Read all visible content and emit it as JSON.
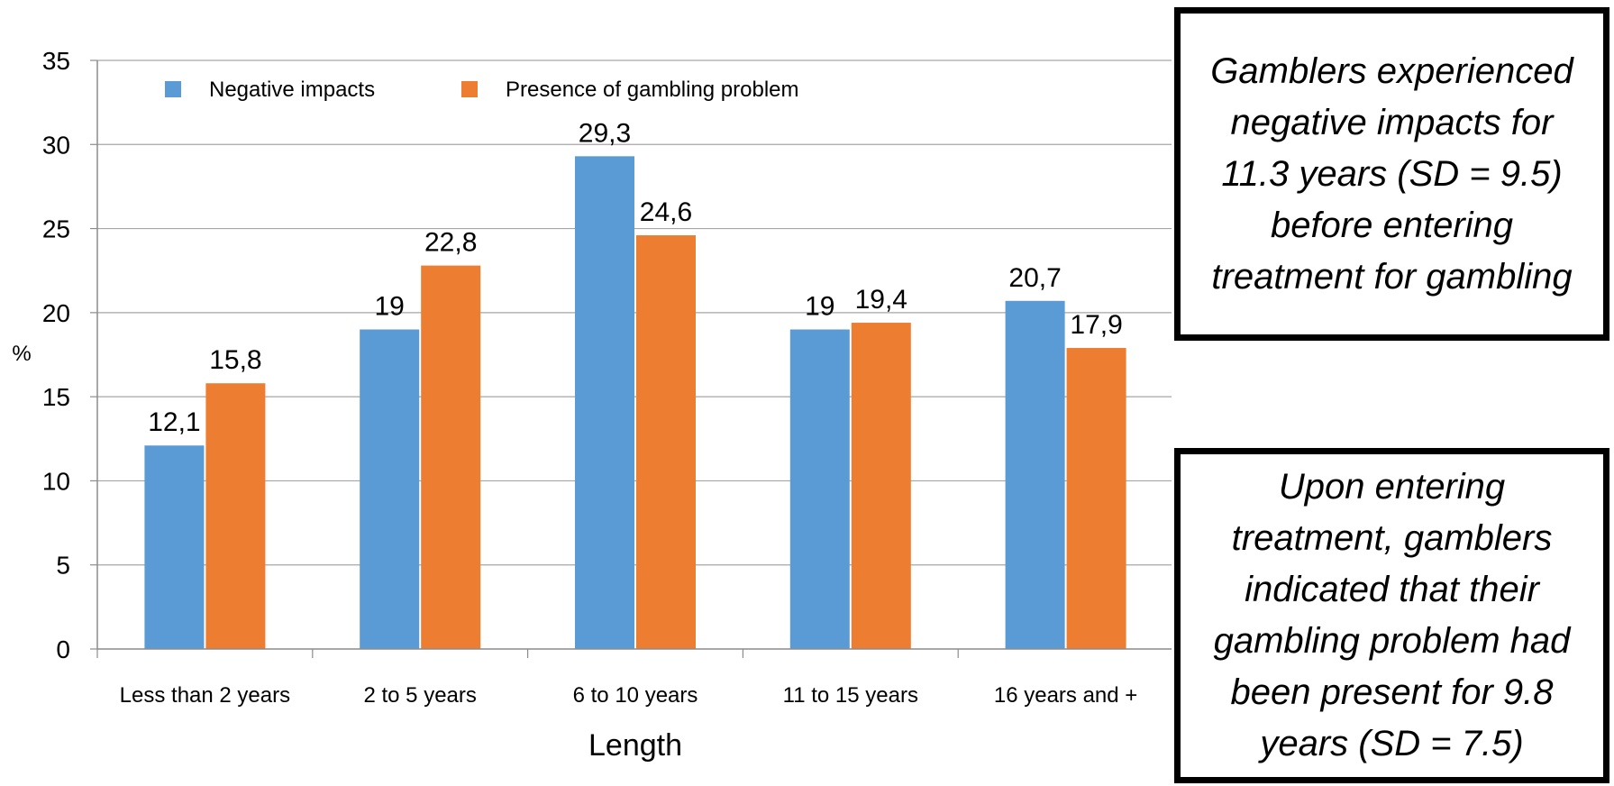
{
  "chart_data": {
    "type": "bar",
    "title": "",
    "xlabel": "Length",
    "ylabel": "%",
    "ylim": [
      0,
      35
    ],
    "yticks": [
      0,
      5,
      10,
      15,
      20,
      25,
      30,
      35
    ],
    "grid": true,
    "legend_position": "top-left",
    "categories": [
      "Less than 2 years",
      "2 to 5 years",
      "6 to 10 years",
      "11 to 15 years",
      "16 years and +"
    ],
    "series": [
      {
        "name": "Negative impacts",
        "color": "#5B9BD5",
        "values": [
          12.1,
          19,
          29.3,
          19,
          20.7
        ],
        "labels": [
          "12,1",
          "19",
          "29,3",
          "19",
          "20,7"
        ]
      },
      {
        "name": "Presence of gambling problem",
        "color": "#ED7D31",
        "values": [
          15.8,
          22.8,
          24.6,
          19.4,
          17.9
        ],
        "labels": [
          "15,8",
          "22,8",
          "24,6",
          "19,4",
          "17,9"
        ]
      }
    ]
  },
  "callouts": {
    "top": "Gamblers experienced negative impacts for 11.3 years (SD = 9.5) before entering treatment for gambling",
    "bottom": "Upon entering treatment, gamblers indicated that their gambling problem had been present for 9.8 years (SD = 7.5)"
  }
}
